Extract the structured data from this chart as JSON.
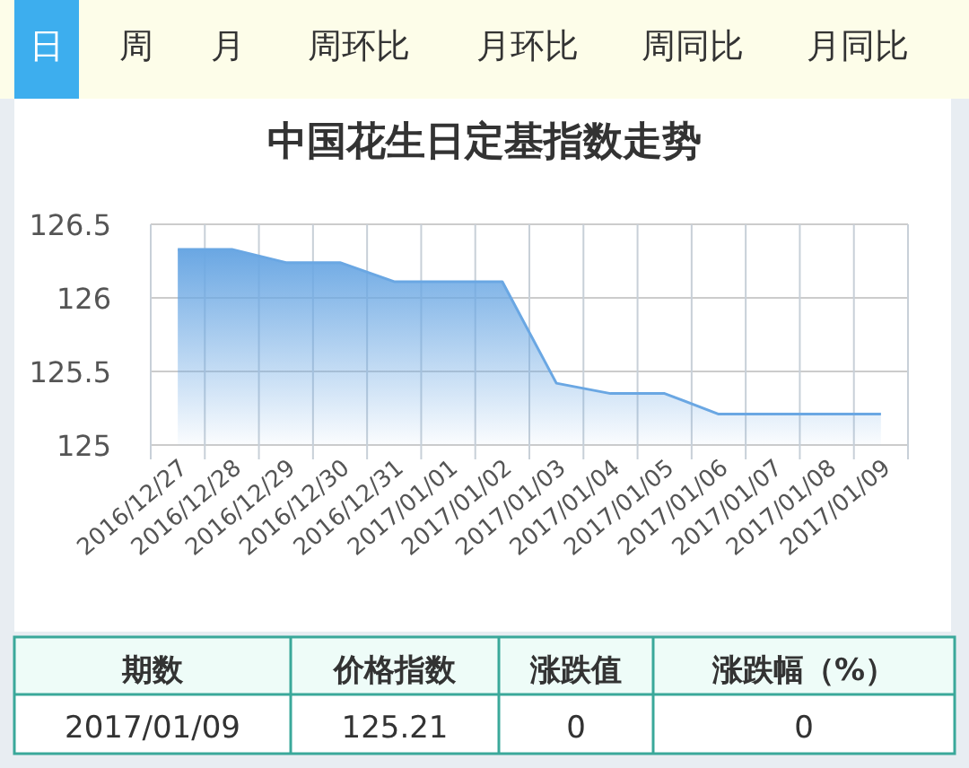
{
  "chart_data": [
    {
      "type": "other",
      "annotations": [
        "日",
        "周",
        "月",
        "周环比",
        "月环比",
        "周同比",
        "月同比"
      ]
    },
    {
      "type": "area",
      "title": "中国花生日定基指数走势",
      "categories": [
        "2016/12/27",
        "2016/12/28",
        "2016/12/29",
        "2016/12/30",
        "2016/12/31",
        "2017/01/01",
        "2017/01/02",
        "2017/01/03",
        "2017/01/04",
        "2017/01/05",
        "2017/01/06",
        "2017/01/07",
        "2017/01/08",
        "2017/01/09"
      ],
      "series": [
        {
          "color": "#6aa7e3",
          "values": [
            126.33,
            126.33,
            126.24,
            126.24,
            126.11,
            126.11,
            126.11,
            125.42,
            125.35,
            125.35,
            125.21,
            125.21,
            125.21,
            125.21
          ]
        }
      ],
      "ylim": [
        125,
        126.5
      ],
      "yticks": [
        125,
        125.5,
        126,
        126.5
      ],
      "grid": true
    },
    {
      "type": "other",
      "annotations": [
        "期数",
        "价格指数",
        "涨跌值",
        "涨跌幅（%）",
        "2017/01/09",
        "125.21",
        "0",
        "0"
      ]
    }
  ]
}
